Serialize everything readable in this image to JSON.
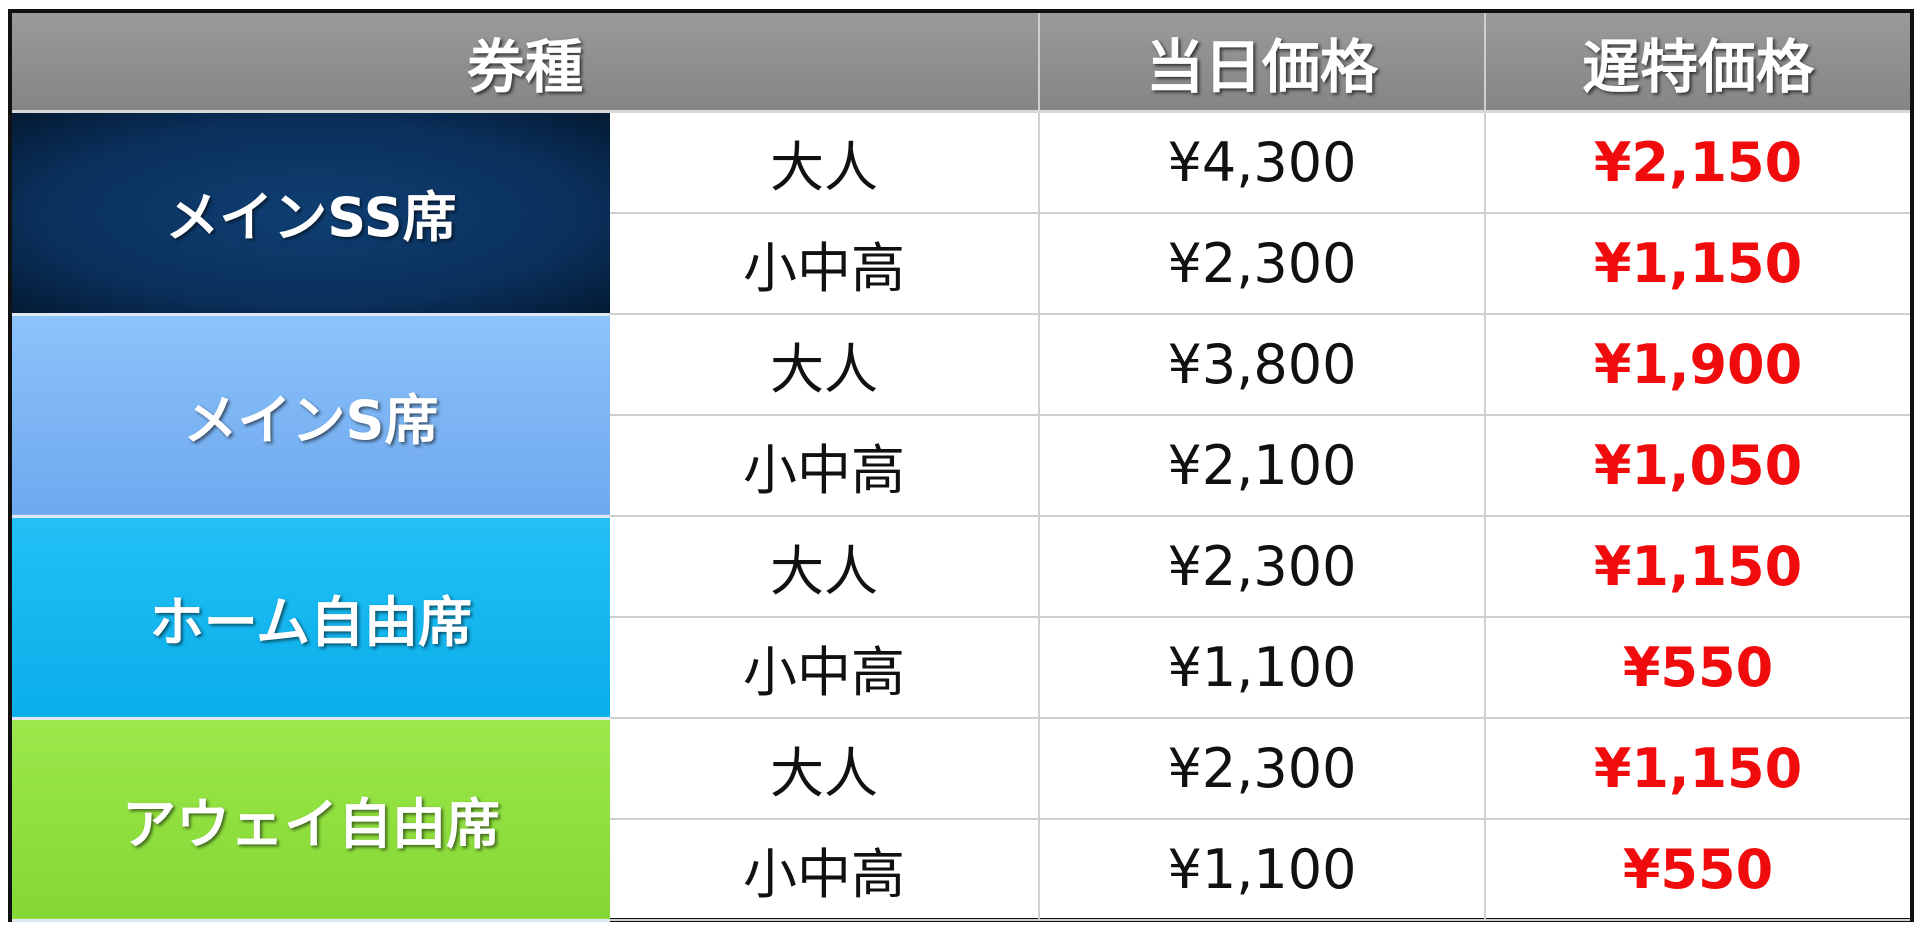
{
  "header": {
    "ticket_type": "券種",
    "day_price": "当日価格",
    "late_price": "遅特価格"
  },
  "colors": {
    "header": "#8c8c8c",
    "late_price_text": "#f00c0c"
  },
  "groups": [
    {
      "name": "メインSS席",
      "color": "#0b3461",
      "rows": [
        {
          "type": "大人",
          "day": "¥4,300",
          "late": "¥2,150"
        },
        {
          "type": "小中高",
          "day": "¥2,300",
          "late": "¥1,150"
        }
      ]
    },
    {
      "name": "メインS席",
      "color": "#7ab3f3",
      "rows": [
        {
          "type": "大人",
          "day": "¥3,800",
          "late": "¥1,900"
        },
        {
          "type": "小中高",
          "day": "¥2,100",
          "late": "¥1,050"
        }
      ]
    },
    {
      "name": "ホーム自由席",
      "color": "#14b6f0",
      "rows": [
        {
          "type": "大人",
          "day": "¥2,300",
          "late": "¥1,150"
        },
        {
          "type": "小中高",
          "day": "¥1,100",
          "late": "¥550"
        }
      ]
    },
    {
      "name": "アウェイ自由席",
      "color": "#8fe03c",
      "rows": [
        {
          "type": "大人",
          "day": "¥2,300",
          "late": "¥1,150"
        },
        {
          "type": "小中高",
          "day": "¥1,100",
          "late": "¥550"
        }
      ]
    }
  ]
}
